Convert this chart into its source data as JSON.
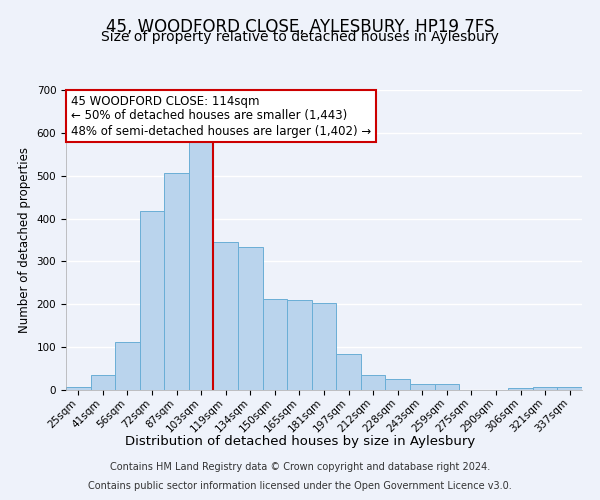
{
  "title": "45, WOODFORD CLOSE, AYLESBURY, HP19 7FS",
  "subtitle": "Size of property relative to detached houses in Aylesbury",
  "xlabel": "Distribution of detached houses by size in Aylesbury",
  "ylabel": "Number of detached properties",
  "categories": [
    "25sqm",
    "41sqm",
    "56sqm",
    "72sqm",
    "87sqm",
    "103sqm",
    "119sqm",
    "134sqm",
    "150sqm",
    "165sqm",
    "181sqm",
    "197sqm",
    "212sqm",
    "228sqm",
    "243sqm",
    "259sqm",
    "275sqm",
    "290sqm",
    "306sqm",
    "321sqm",
    "337sqm"
  ],
  "values": [
    8,
    35,
    113,
    418,
    507,
    578,
    345,
    333,
    212,
    210,
    202,
    83,
    35,
    25,
    13,
    13,
    0,
    0,
    5,
    8,
    8
  ],
  "bar_color": "#bad4ed",
  "bar_edge_color": "#6aaed6",
  "vline_x": 5.5,
  "vline_color": "#cc0000",
  "ylim": [
    0,
    700
  ],
  "yticks": [
    0,
    100,
    200,
    300,
    400,
    500,
    600,
    700
  ],
  "annotation_line1": "45 WOODFORD CLOSE: 114sqm",
  "annotation_line2": "← 50% of detached houses are smaller (1,443)",
  "annotation_line3": "48% of semi-detached houses are larger (1,402) →",
  "footnote1": "Contains HM Land Registry data © Crown copyright and database right 2024.",
  "footnote2": "Contains public sector information licensed under the Open Government Licence v3.0.",
  "background_color": "#eef2fa",
  "plot_background": "#eef2fa",
  "grid_color": "#ffffff",
  "title_fontsize": 12,
  "subtitle_fontsize": 10,
  "xlabel_fontsize": 9.5,
  "ylabel_fontsize": 8.5,
  "tick_fontsize": 7.5,
  "annotation_fontsize": 8.5,
  "footnote_fontsize": 7
}
